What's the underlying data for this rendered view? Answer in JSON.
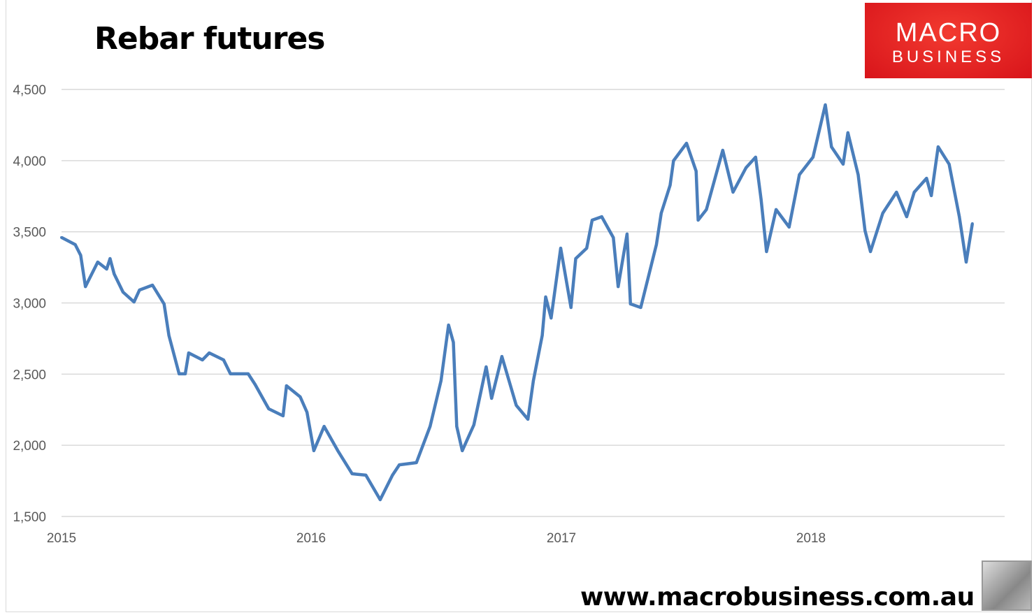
{
  "chart_data": {
    "type": "line",
    "title": "Rebar futures",
    "xlabel": "",
    "ylabel": "",
    "ylim": [
      1500,
      4500
    ],
    "xlim": [
      "2015-01-01",
      "2019-01-01"
    ],
    "yticks": [
      "1,500",
      "2,000",
      "2,500",
      "3,000",
      "3,500",
      "4,000",
      "4,500"
    ],
    "ytick_values": [
      1500,
      2000,
      2500,
      3000,
      3500,
      4000,
      4500
    ],
    "xticks": [
      "2015",
      "2016",
      "2017",
      "2018"
    ],
    "xtick_dates": [
      "2015-01-01",
      "2016-01-01",
      "2017-01-01",
      "2018-01-01"
    ],
    "grid": "horizontal",
    "legend": "none",
    "line_color": "#4a7ebb",
    "series": [
      {
        "x": [
          "2015-01-01",
          "2015-01-21",
          "2015-01-29",
          "2015-02-05",
          "2015-02-23",
          "2015-03-08",
          "2015-03-13",
          "2015-03-19",
          "2015-04-01",
          "2015-04-17",
          "2015-04-25",
          "2015-05-14",
          "2015-05-31",
          "2015-06-07",
          "2015-06-22",
          "2015-07-01",
          "2015-07-06",
          "2015-07-26",
          "2015-08-05",
          "2015-08-26",
          "2015-09-05",
          "2015-10-01",
          "2015-10-11",
          "2015-10-31",
          "2015-11-21",
          "2015-11-26",
          "2015-12-16",
          "2015-12-26",
          "2016-01-05",
          "2016-01-20",
          "2016-02-09",
          "2016-03-01",
          "2016-03-21",
          "2016-04-11",
          "2016-04-29",
          "2016-05-09",
          "2016-06-03",
          "2016-06-23",
          "2016-07-09",
          "2016-07-20",
          "2016-07-27",
          "2016-08-01",
          "2016-08-09",
          "2016-08-26",
          "2016-09-13",
          "2016-09-21",
          "2016-10-06",
          "2016-10-27",
          "2016-11-13",
          "2016-11-21",
          "2016-12-04",
          "2016-12-09",
          "2016-12-17",
          "2016-12-31",
          "2017-01-15",
          "2017-01-22",
          "2017-02-07",
          "2017-02-15",
          "2017-03-01",
          "2017-03-18",
          "2017-03-25",
          "2017-04-07",
          "2017-04-12",
          "2017-04-27",
          "2017-05-20",
          "2017-05-27",
          "2017-06-09",
          "2017-06-14",
          "2017-07-03",
          "2017-07-17",
          "2017-07-20",
          "2017-08-01",
          "2017-08-25",
          "2017-09-09",
          "2017-09-28",
          "2017-10-12",
          "2017-10-20",
          "2017-10-28",
          "2017-11-11",
          "2017-11-30",
          "2017-12-15",
          "2018-01-04",
          "2018-01-22",
          "2018-01-31",
          "2018-02-17",
          "2018-02-24",
          "2018-03-11",
          "2018-03-21",
          "2018-03-29",
          "2018-04-16",
          "2018-05-06",
          "2018-05-21",
          "2018-06-01",
          "2018-06-19",
          "2018-06-26",
          "2018-07-06",
          "2018-07-22",
          "2018-08-06",
          "2018-08-16",
          "2018-08-25"
        ],
        "values": [
          3460,
          3410,
          3335,
          3115,
          3287,
          3238,
          3312,
          3204,
          3076,
          3007,
          3091,
          3125,
          2993,
          2772,
          2502,
          2502,
          2649,
          2600,
          2649,
          2600,
          2502,
          2502,
          2428,
          2256,
          2207,
          2418,
          2340,
          2232,
          1962,
          2133,
          1962,
          1800,
          1790,
          1618,
          1790,
          1863,
          1878,
          2133,
          2453,
          2845,
          2723,
          2133,
          1962,
          2143,
          2551,
          2330,
          2624,
          2281,
          2183,
          2453,
          2772,
          3042,
          2894,
          3385,
          2968,
          3312,
          3385,
          3582,
          3606,
          3459,
          3115,
          3484,
          2993,
          2968,
          3410,
          3631,
          3827,
          3999,
          4122,
          3926,
          3582,
          3656,
          4073,
          3778,
          3950,
          4024,
          3729,
          3361,
          3656,
          3533,
          3901,
          4024,
          4392,
          4097,
          3975,
          4196,
          3901,
          3508,
          3361,
          3631,
          3778,
          3606,
          3778,
          3876,
          3754,
          4097,
          3975,
          3606,
          3287,
          3557
        ]
      }
    ]
  },
  "branding": {
    "logo_line1": "MACRO",
    "logo_line2": "BUSINESS",
    "url": "www.macrobusiness.com.au"
  }
}
